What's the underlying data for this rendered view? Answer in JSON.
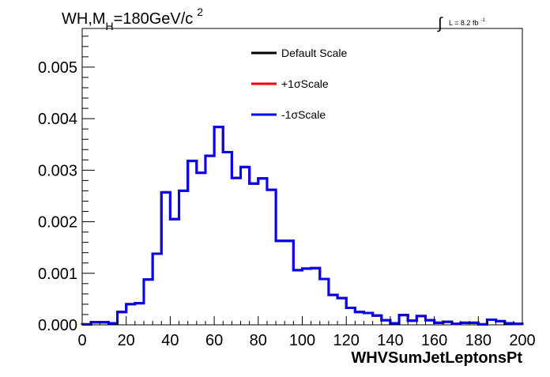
{
  "chart_data": {
    "type": "step",
    "title": "WH,M",
    "title_subscript": "H",
    "title_suffix": "=180GeV/c",
    "title_superscript": "2",
    "lumi_text": "L = 8.2 fb",
    "lumi_superscript": "-1",
    "lumi_integral": "∫",
    "xlabel": "WHVSumJetLeptonsPt",
    "ylabel": "",
    "xlim": [
      0,
      200
    ],
    "ylim": [
      0,
      0.00575
    ],
    "x_ticks": [
      0,
      20,
      40,
      60,
      80,
      100,
      120,
      140,
      160,
      180,
      200
    ],
    "x_tick_labels": [
      "0",
      "20",
      "40",
      "60",
      "80",
      "100",
      "120",
      "140",
      "160",
      "180",
      "200"
    ],
    "y_ticks": [
      0,
      0.001,
      0.002,
      0.003,
      0.004,
      0.005
    ],
    "y_tick_labels": [
      "0.000",
      "0.001",
      "0.002",
      "0.003",
      "0.004",
      "0.005"
    ],
    "bin_edges": [
      0,
      4,
      8,
      12,
      16,
      20,
      24,
      28,
      32,
      36,
      40,
      44,
      48,
      52,
      56,
      60,
      64,
      68,
      72,
      76,
      80,
      84,
      88,
      92,
      96,
      100,
      104,
      108,
      112,
      116,
      120,
      124,
      128,
      132,
      136,
      140,
      144,
      148,
      152,
      156,
      160,
      164,
      168,
      172,
      176,
      180,
      184,
      188,
      192,
      196,
      200
    ],
    "legend_position": "top-center",
    "grid": false,
    "series": [
      {
        "name": "Default Scale",
        "color": "#000000",
        "values": [
          1e-05,
          5e-05,
          5e-05,
          3e-05,
          0.00025,
          0.0004,
          0.00042,
          0.00088,
          0.00138,
          0.00257,
          0.00205,
          0.0026,
          0.00318,
          0.00295,
          0.00328,
          0.00384,
          0.00335,
          0.00285,
          0.00306,
          0.00274,
          0.00284,
          0.00262,
          0.00163,
          0.00163,
          0.00106,
          0.00109,
          0.0011,
          0.00089,
          0.00058,
          0.00052,
          0.00033,
          0.00025,
          0.00023,
          0.00018,
          9e-05,
          3e-05,
          0.00019,
          8e-05,
          0.00017,
          9e-05,
          4e-05,
          6e-05,
          2e-05,
          4e-05,
          4e-05,
          1e-05,
          0.0001,
          7e-05,
          3e-05,
          2e-05
        ]
      },
      {
        "name": "+1σScale",
        "color": "#ff0000",
        "values": [
          1e-05,
          5e-05,
          5e-05,
          3e-05,
          0.00025,
          0.0004,
          0.00042,
          0.00088,
          0.00138,
          0.00257,
          0.00205,
          0.0026,
          0.00318,
          0.00295,
          0.00328,
          0.00384,
          0.00335,
          0.00285,
          0.00306,
          0.00274,
          0.00284,
          0.00262,
          0.00163,
          0.00163,
          0.00106,
          0.00109,
          0.0011,
          0.00089,
          0.00058,
          0.00052,
          0.00033,
          0.00025,
          0.00023,
          0.00018,
          9e-05,
          3e-05,
          0.00019,
          8e-05,
          0.00017,
          9e-05,
          4e-05,
          6e-05,
          2e-05,
          4e-05,
          4e-05,
          1e-05,
          0.0001,
          7e-05,
          3e-05,
          2e-05
        ]
      },
      {
        "name": "-1σScale",
        "color": "#0000ff",
        "values": [
          1e-05,
          5e-05,
          5e-05,
          3e-05,
          0.00025,
          0.0004,
          0.00042,
          0.00088,
          0.00138,
          0.00257,
          0.00205,
          0.0026,
          0.00318,
          0.00295,
          0.00328,
          0.00384,
          0.00335,
          0.00285,
          0.00306,
          0.00274,
          0.00284,
          0.00262,
          0.00163,
          0.00163,
          0.00106,
          0.00109,
          0.0011,
          0.00089,
          0.00058,
          0.00052,
          0.00033,
          0.00025,
          0.00023,
          0.00018,
          9e-05,
          3e-05,
          0.00019,
          8e-05,
          0.00017,
          9e-05,
          4e-05,
          6e-05,
          2e-05,
          4e-05,
          4e-05,
          1e-05,
          0.0001,
          7e-05,
          3e-05,
          2e-05
        ]
      }
    ]
  }
}
